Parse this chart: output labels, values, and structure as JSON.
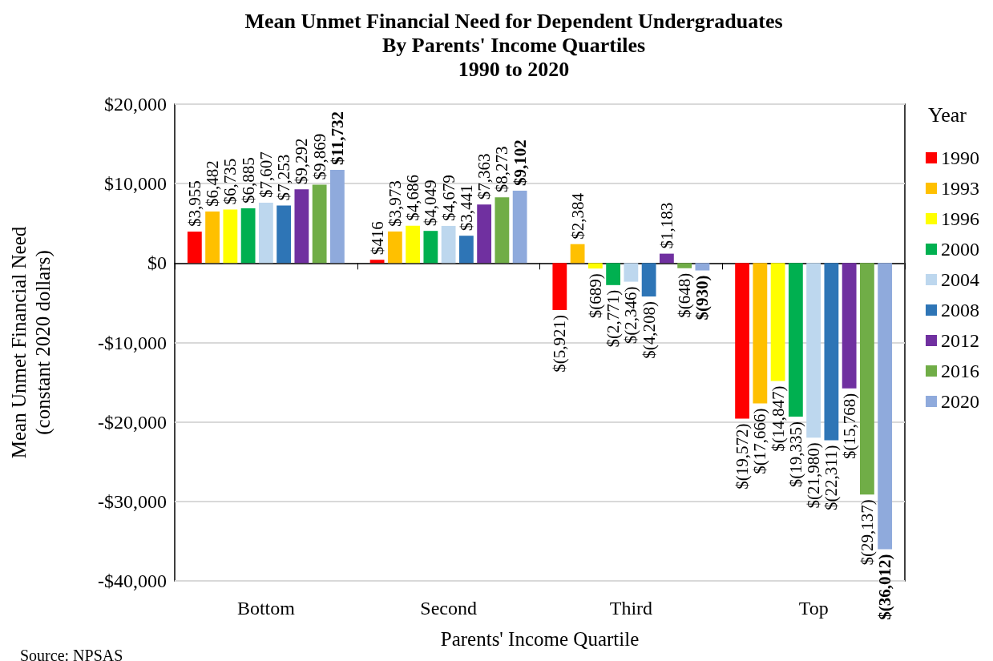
{
  "chart_data": {
    "type": "bar",
    "title": "Mean Unmet Financial Need for Dependent Undergraduates\nBy Parents' Income Quartiles\n1990 to 2020",
    "xlabel": "Parents' Income Quartile",
    "ylabel": "Mean Unmet Financial Need\n(constant 2020 dollars)",
    "legend_title": "Year",
    "annotations": [
      "Source: NPSAS"
    ],
    "categories": [
      "Bottom",
      "Second",
      "Third",
      "Top"
    ],
    "series": [
      {
        "name": "1990",
        "color": "#ff0000",
        "values": [
          3955,
          416,
          -5921,
          -19572
        ],
        "value_labels": [
          "$3,955",
          "$416",
          "$(5,921)",
          "$(19,572)"
        ]
      },
      {
        "name": "1993",
        "color": "#ffc000",
        "values": [
          6482,
          3973,
          2384,
          -17666
        ],
        "value_labels": [
          "$6,482",
          "$3,973",
          "$2,384",
          "$(17,666)"
        ]
      },
      {
        "name": "1996",
        "color": "#ffff00",
        "values": [
          6735,
          4686,
          -689,
          -14847
        ],
        "value_labels": [
          "$6,735",
          "$4,686",
          "$(689)",
          "$(14,847)"
        ]
      },
      {
        "name": "2000",
        "color": "#00b050",
        "values": [
          6885,
          4049,
          -2771,
          -19335
        ],
        "value_labels": [
          "$6,885",
          "$4,049",
          "$(2,771)",
          "$(19,335)"
        ]
      },
      {
        "name": "2004",
        "color": "#bdd7ee",
        "values": [
          7607,
          4679,
          -2346,
          -21980
        ],
        "value_labels": [
          "$7,607",
          "$4,679",
          "$(2,346)",
          "$(21,980)"
        ]
      },
      {
        "name": "2008",
        "color": "#2e75b6",
        "values": [
          7253,
          3441,
          -4208,
          -22311
        ],
        "value_labels": [
          "$7,253",
          "$3,441",
          "$(4,208)",
          "$(22,311)"
        ]
      },
      {
        "name": "2012",
        "color": "#7030a0",
        "values": [
          9292,
          7363,
          1183,
          -15768
        ],
        "value_labels": [
          "$9,292",
          "$7,363",
          "$1,183",
          "$(15,768)"
        ]
      },
      {
        "name": "2016",
        "color": "#70ad47",
        "values": [
          9869,
          8273,
          -648,
          -29137
        ],
        "value_labels": [
          "$9,869",
          "$8,273",
          "$(648)",
          "$(29,137)"
        ]
      },
      {
        "name": "2020",
        "color": "#8faadc",
        "values": [
          11732,
          9102,
          -930,
          -36012
        ],
        "value_labels": [
          "$11,732",
          "$9,102",
          "$(930)",
          "$(36,012)"
        ]
      }
    ],
    "ylim": [
      -40000,
      20000
    ],
    "yticks": [
      {
        "value": -40000,
        "label": "-$40,000"
      },
      {
        "value": -30000,
        "label": "-$30,000"
      },
      {
        "value": -20000,
        "label": "-$20,000"
      },
      {
        "value": -10000,
        "label": "-$10,000"
      },
      {
        "value": 0,
        "label": "$0"
      },
      {
        "value": 10000,
        "label": "$10,000"
      },
      {
        "value": 20000,
        "label": "$20,000"
      }
    ],
    "grid": "y",
    "legend": "right"
  }
}
